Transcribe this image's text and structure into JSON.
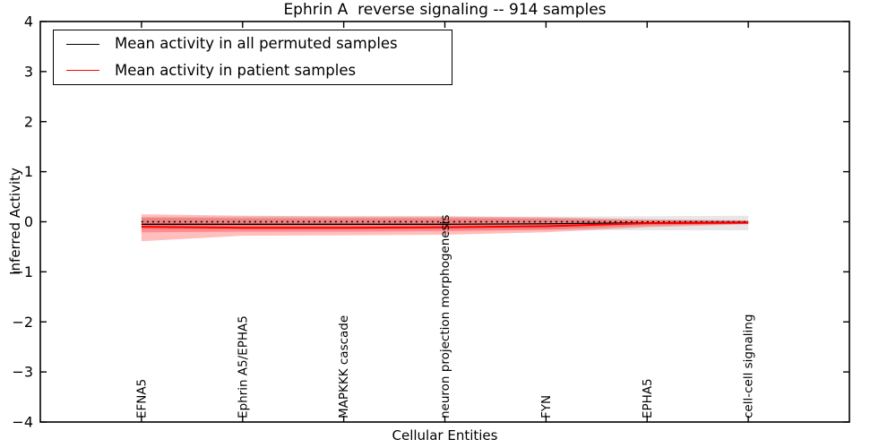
{
  "chart_data": {
    "type": "line",
    "title": "Ephrin A  reverse signaling -- 914 samples",
    "xlabel": "Cellular Entities",
    "ylabel": "Inferred Activity",
    "ylim": [
      -4,
      4
    ],
    "xlim_units": [
      -1,
      7
    ],
    "yticks": [
      4,
      3,
      2,
      1,
      0,
      -1,
      -2,
      -3,
      -4
    ],
    "grid": false,
    "zero_line": 0,
    "categories": [
      "EFNA5",
      "Ephrin A5/EPHA5",
      "MAPKKK cascade",
      "neuron projection morphogenesis",
      "FYN",
      "EPHA5",
      "cell-cell signaling"
    ],
    "series": [
      {
        "name": "permuted-confidence-band",
        "type": "band",
        "color": "rgba(120,120,120,0.18)",
        "top": [
          0.1,
          0.1,
          0.1,
          0.1,
          0.1,
          0.11,
          0.12
        ],
        "bottom": [
          -0.15,
          -0.15,
          -0.15,
          -0.15,
          -0.16,
          -0.17,
          -0.17
        ]
      },
      {
        "name": "patient-band-outer",
        "type": "band",
        "color": "rgba(255,0,0,0.25)",
        "top": [
          0.15,
          0.12,
          0.11,
          0.11,
          0.09,
          0.05,
          0.03
        ],
        "bottom": [
          -0.39,
          -0.28,
          -0.27,
          -0.26,
          -0.21,
          -0.11,
          -0.05
        ]
      },
      {
        "name": "patient-band-inner",
        "type": "band",
        "color": "rgba(255,0,0,0.25)",
        "top": [
          0.08,
          0.07,
          0.07,
          0.07,
          0.06,
          0.03,
          0.02
        ],
        "bottom": [
          -0.21,
          -0.2,
          -0.2,
          -0.19,
          -0.16,
          -0.08,
          -0.04
        ]
      },
      {
        "name": "Mean activity in all permuted samples",
        "type": "line",
        "color": "#000000",
        "width": 1.3,
        "values": [
          -0.05,
          -0.05,
          -0.05,
          -0.05,
          -0.04,
          -0.02,
          -0.01
        ]
      },
      {
        "name": "Mean activity in patient samples",
        "type": "line",
        "color": "#ff0000",
        "width": 2,
        "values": [
          -0.1,
          -0.12,
          -0.12,
          -0.11,
          -0.09,
          -0.03,
          -0.02
        ]
      }
    ],
    "legend": {
      "position": "upper left",
      "items": [
        {
          "label": "Mean activity in all permuted samples",
          "color": "#000000"
        },
        {
          "label": "Mean activity in patient samples",
          "color": "#ff0000"
        }
      ]
    }
  }
}
